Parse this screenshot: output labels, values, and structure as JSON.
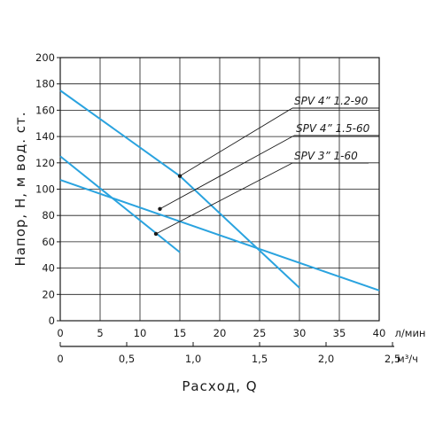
{
  "chart_data": {
    "type": "line",
    "title": "",
    "ylabel": "Напор, Н, м вод. ст.",
    "xlabel": "Расход, Q",
    "ylim": [
      0,
      200
    ],
    "xlim": [
      0,
      40
    ],
    "x_unit": "л/мин",
    "x2_unit": "м³/ч",
    "x2_ticks": [
      "0",
      "0,5",
      "1,0",
      "1,5",
      "2,0",
      "2,5"
    ],
    "x2_tick_values": [
      0,
      0.5,
      1.0,
      1.5,
      2.0,
      2.5
    ],
    "grid": true,
    "line_color": "#2aa3df",
    "series": [
      {
        "name": "SPV 4” 1.2-90",
        "x": [
          0,
          15,
          30
        ],
        "y": [
          175,
          110,
          25
        ],
        "marker": [
          15,
          110
        ]
      },
      {
        "name": "SPV 4” 1.5-60",
        "x": [
          0,
          15
        ],
        "y": [
          125,
          52
        ],
        "marker": [
          12.5,
          85
        ]
      },
      {
        "name": "SPV 3” 1-60",
        "x": [
          0,
          40
        ],
        "y": [
          107,
          23
        ],
        "marker": [
          12,
          66
        ]
      }
    ]
  }
}
